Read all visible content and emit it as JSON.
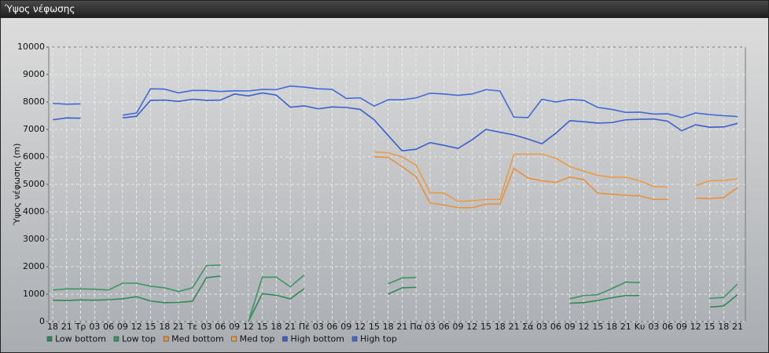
{
  "chart_data": {
    "type": "line",
    "title": "Ύψος νέφωσης",
    "ylabel": "Ύψος νέφωσης (m)",
    "categories": [
      "18",
      "21",
      "Τρ",
      "03",
      "06",
      "09",
      "12",
      "15",
      "18",
      "21",
      "Τε",
      "03",
      "06",
      "09",
      "12",
      "15",
      "18",
      "21",
      "Πέ",
      "03",
      "06",
      "09",
      "12",
      "15",
      "18",
      "21",
      "Πα",
      "03",
      "06",
      "09",
      "12",
      "15",
      "18",
      "21",
      "Σά",
      "03",
      "06",
      "09",
      "12",
      "15",
      "18",
      "21",
      "Κυ",
      "03",
      "06",
      "09",
      "12",
      "15",
      "18",
      "21"
    ],
    "ylim": [
      0,
      10000
    ],
    "yticks": [
      0,
      1000,
      2000,
      3000,
      4000,
      5000,
      6000,
      7000,
      8000,
      9000,
      10000
    ],
    "grid": true,
    "series": [
      {
        "name": "Low bottom",
        "color": "#2f8a55",
        "values": [
          780,
          770,
          790,
          780,
          800,
          830,
          910,
          750,
          690,
          700,
          740,
          1600,
          1660,
          null,
          0,
          1020,
          960,
          830,
          1200,
          null,
          null,
          null,
          null,
          null,
          1000,
          1230,
          1250,
          null,
          null,
          null,
          null,
          null,
          null,
          null,
          null,
          null,
          null,
          670,
          690,
          770,
          870,
          950,
          950,
          null,
          null,
          null,
          null,
          530,
          570,
          980
        ]
      },
      {
        "name": "Low top",
        "color": "#3a9660",
        "values": [
          1150,
          1190,
          1190,
          1180,
          1150,
          1400,
          1400,
          1290,
          1230,
          1100,
          1230,
          2040,
          2060,
          null,
          0,
          1620,
          1620,
          1270,
          1700,
          null,
          null,
          null,
          null,
          null,
          1380,
          1590,
          1610,
          null,
          null,
          null,
          null,
          null,
          null,
          null,
          null,
          null,
          null,
          830,
          950,
          980,
          1200,
          1440,
          1420,
          null,
          null,
          null,
          null,
          850,
          880,
          1370
        ]
      },
      {
        "name": "Med bottom",
        "color": "#e8913a",
        "values": [
          null,
          null,
          null,
          null,
          null,
          null,
          null,
          null,
          null,
          null,
          null,
          null,
          null,
          null,
          null,
          null,
          null,
          null,
          null,
          null,
          null,
          null,
          null,
          6000,
          5980,
          5650,
          5280,
          4320,
          4250,
          4150,
          4150,
          4280,
          4280,
          5580,
          5230,
          5130,
          5070,
          5270,
          5170,
          4680,
          4640,
          4600,
          4580,
          4450,
          4450,
          null,
          4500,
          4480,
          4520,
          4880
        ]
      },
      {
        "name": "Med top",
        "color": "#eb9a45",
        "values": [
          null,
          null,
          null,
          null,
          null,
          null,
          null,
          null,
          null,
          null,
          null,
          null,
          null,
          null,
          null,
          null,
          null,
          null,
          null,
          null,
          null,
          null,
          null,
          6180,
          6150,
          6000,
          5700,
          4700,
          4680,
          4380,
          4400,
          4450,
          4450,
          6100,
          6100,
          6100,
          5950,
          5650,
          5480,
          5330,
          5260,
          5260,
          5130,
          4920,
          4900,
          null,
          4950,
          5130,
          5140,
          5200
        ]
      },
      {
        "name": "High bottom",
        "color": "#3a5fcd",
        "values": [
          7350,
          7420,
          7410,
          null,
          null,
          7420,
          7480,
          8060,
          8070,
          8020,
          8100,
          8060,
          8070,
          8290,
          8220,
          8330,
          8250,
          7810,
          7860,
          7750,
          7820,
          7800,
          7730,
          7350,
          6780,
          6220,
          6280,
          6520,
          6420,
          6310,
          6620,
          7000,
          6900,
          6800,
          6650,
          6480,
          6860,
          7320,
          7280,
          7230,
          7250,
          7350,
          7370,
          7380,
          7300,
          6950,
          7170,
          7080,
          7090,
          7220
        ]
      },
      {
        "name": "High top",
        "color": "#4169d8",
        "values": [
          7950,
          7920,
          7930,
          null,
          null,
          7520,
          7600,
          8480,
          8470,
          8330,
          8420,
          8420,
          8380,
          8410,
          8400,
          8460,
          8450,
          8580,
          8540,
          8480,
          8460,
          8130,
          8150,
          7850,
          8080,
          8080,
          8150,
          8320,
          8290,
          8240,
          8290,
          8450,
          8400,
          7450,
          7430,
          8100,
          8000,
          8090,
          8060,
          7800,
          7730,
          7620,
          7630,
          7560,
          7570,
          7430,
          7600,
          7540,
          7500,
          7470
        ]
      }
    ]
  }
}
